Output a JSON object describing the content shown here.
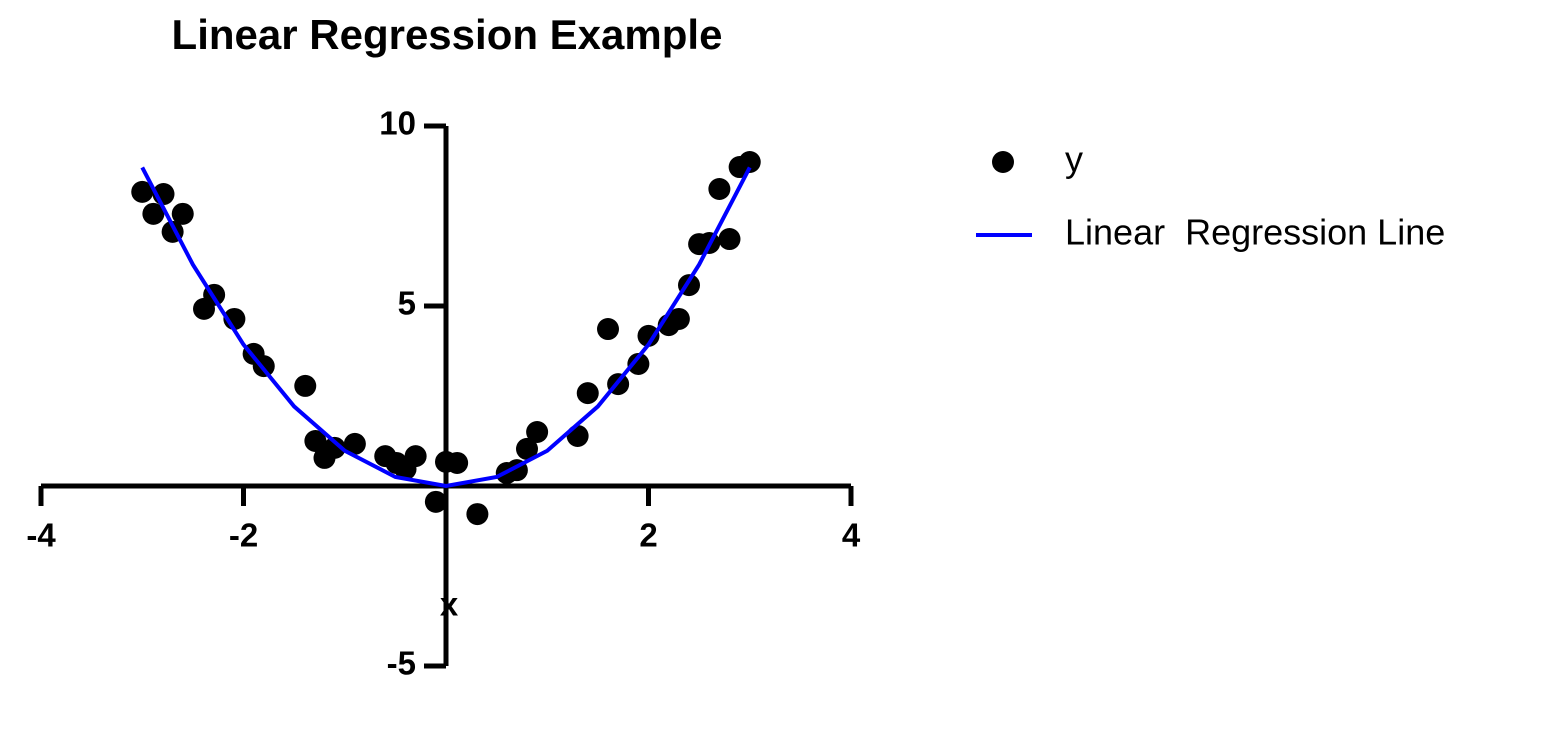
{
  "chart_data": {
    "type": "scatter",
    "title": "Linear Regression Example",
    "x_label": "x",
    "xlim": [
      -4,
      4
    ],
    "ylim": [
      -5,
      10
    ],
    "xticks": [
      -4,
      -2,
      2,
      4
    ],
    "yticks": [
      -5,
      5,
      10
    ],
    "series": [
      {
        "name": "y",
        "type": "scatter",
        "color": "#000000",
        "x": [
          -3.0,
          -2.89,
          -2.79,
          -2.7,
          -2.6,
          -2.39,
          -2.29,
          -2.09,
          -1.9,
          -1.8,
          -1.39,
          -1.29,
          -1.2,
          -1.1,
          -0.9,
          -0.6,
          -0.49,
          -0.4,
          -0.3,
          -0.1,
          0.0,
          0.11,
          0.31,
          0.6,
          0.7,
          0.8,
          0.9,
          1.3,
          1.4,
          1.6,
          1.7,
          1.9,
          2.0,
          2.2,
          2.3,
          2.4,
          2.5,
          2.6,
          2.7,
          2.8,
          2.9,
          3.0
        ],
        "values": [
          8.17,
          7.56,
          8.11,
          7.06,
          7.56,
          4.92,
          5.31,
          4.64,
          3.67,
          3.33,
          2.78,
          1.25,
          0.78,
          1.06,
          1.17,
          0.83,
          0.64,
          0.47,
          0.83,
          -0.44,
          0.67,
          0.64,
          -0.78,
          0.36,
          0.44,
          1.03,
          1.5,
          1.39,
          2.58,
          4.36,
          2.83,
          3.39,
          4.17,
          4.47,
          4.64,
          5.58,
          6.72,
          6.75,
          8.25,
          6.86,
          8.86,
          9.0
        ]
      },
      {
        "name": "Linear  Regression Line",
        "type": "line",
        "color": "#0000ff",
        "x": [
          -3,
          -2.5,
          -2,
          -1.5,
          -1,
          -0.5,
          0,
          0.5,
          1,
          1.5,
          2,
          2.5,
          3
        ],
        "values": [
          8.85,
          6.15,
          3.93,
          2.21,
          0.98,
          0.25,
          0,
          0.25,
          0.98,
          2.21,
          3.93,
          6.15,
          8.85
        ]
      }
    ]
  }
}
